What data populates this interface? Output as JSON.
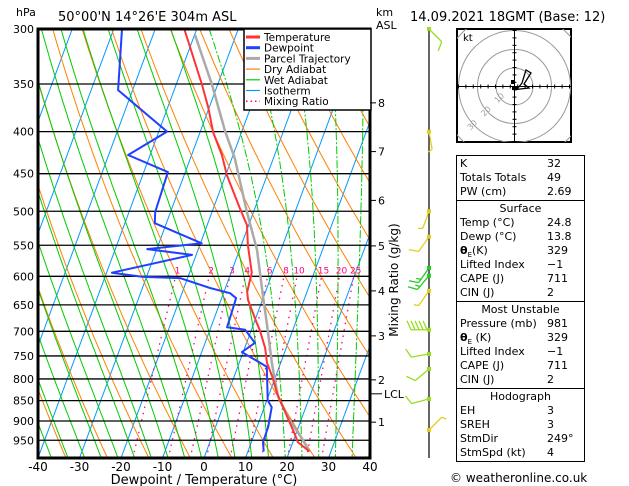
{
  "header": {
    "pressure_unit": "hPa",
    "location": "50°00'N  14°26'E  304m  ASL",
    "km": "km",
    "asl": "ASL",
    "datetime": "14.09.2021  18GMT  (Base: 12)"
  },
  "legend": [
    {
      "label": "Temperature",
      "color": "#ff3333",
      "style": "solid"
    },
    {
      "label": "Dewpoint",
      "color": "#2040ff",
      "style": "solid"
    },
    {
      "label": "Parcel Trajectory",
      "color": "#aaaaaa",
      "style": "solid"
    },
    {
      "label": "Dry Adiabat",
      "color": "#ff8000",
      "style": "solid"
    },
    {
      "label": "Wet Adiabat",
      "color": "#00cc00",
      "style": "solid"
    },
    {
      "label": "Isotherm",
      "color": "#0099ff",
      "style": "solid"
    },
    {
      "label": "Mixing Ratio",
      "color": "#ff0080",
      "style": "dotted"
    }
  ],
  "chart_data": {
    "type": "skew-t",
    "xlabel": "Dewpoint / Temperature (°C)",
    "ylabel": "hPa",
    "y2label": "Mixing Ratio (g/kg)",
    "xlim": [
      -40,
      40
    ],
    "ylim": [
      1000,
      300
    ],
    "x_ticks": [
      "-40",
      "-30",
      "-20",
      "-10",
      "0",
      "10",
      "20",
      "30",
      "40"
    ],
    "x_tick_values": [
      -40,
      -30,
      -20,
      -10,
      0,
      10,
      20,
      30,
      40
    ],
    "pressure_levels": [
      300,
      350,
      400,
      450,
      500,
      550,
      600,
      650,
      700,
      750,
      800,
      850,
      900,
      950
    ],
    "pressure_labels": [
      "300",
      "350",
      "400",
      "450",
      "500",
      "550",
      "600",
      "650",
      "700",
      "750",
      "800",
      "850",
      "900",
      "950"
    ],
    "height_ticks": [
      {
        "label": "8",
        "p": 369
      },
      {
        "label": "7",
        "p": 423
      },
      {
        "label": "6",
        "p": 485
      },
      {
        "label": "5",
        "p": 551
      },
      {
        "label": "4",
        "p": 625
      },
      {
        "label": "3",
        "p": 709
      },
      {
        "label": "2",
        "p": 802
      },
      {
        "label": "LCL",
        "p": 834
      },
      {
        "label": "1",
        "p": 903
      }
    ],
    "mixing_ratios": [
      1,
      2,
      3,
      4,
      6,
      8,
      10,
      15,
      20,
      25
    ],
    "mixing_ratio_labels": [
      "1",
      "2",
      "3",
      "4",
      "6",
      "8",
      "10",
      "15",
      "20",
      "25"
    ],
    "temperature": [
      [
        980,
        24.8
      ],
      [
        955,
        21.2
      ],
      [
        936,
        19.9
      ],
      [
        905,
        17.6
      ],
      [
        866,
        14.5
      ],
      [
        832,
        11.8
      ],
      [
        795,
        9.2
      ],
      [
        765,
        6.7
      ],
      [
        733,
        4.9
      ],
      [
        697,
        2.0
      ],
      [
        684,
        0.7
      ],
      [
        641,
        -3.5
      ],
      [
        627,
        -4.4
      ],
      [
        606,
        -4.8
      ],
      [
        594,
        -5.0
      ],
      [
        550,
        -8.4
      ],
      [
        520,
        -10.4
      ],
      [
        496,
        -13.6
      ],
      [
        452,
        -19.7
      ],
      [
        427,
        -22.7
      ],
      [
        401,
        -26.8
      ],
      [
        374,
        -30.2
      ],
      [
        351,
        -33.7
      ],
      [
        300,
        -43.0
      ]
    ],
    "dewpoint": [
      [
        980,
        13.8
      ],
      [
        955,
        12.8
      ],
      [
        915,
        12.7
      ],
      [
        866,
        11.8
      ],
      [
        849,
        10.2
      ],
      [
        773,
        7.0
      ],
      [
        742,
        -0.3
      ],
      [
        723,
        2.0
      ],
      [
        697,
        -1.5
      ],
      [
        692,
        -6.1
      ],
      [
        638,
        -6.5
      ],
      [
        629,
        -8.4
      ],
      [
        620,
        -13.7
      ],
      [
        603,
        -21.8
      ],
      [
        601,
        -30.8
      ],
      [
        594,
        -38.7
      ],
      [
        565,
        -21.0
      ],
      [
        556,
        -32.3
      ],
      [
        547,
        -19.7
      ],
      [
        517,
        -32.8
      ],
      [
        501,
        -33.7
      ],
      [
        448,
        -34.2
      ],
      [
        427,
        -45.3
      ],
      [
        400,
        -38.0
      ],
      [
        356,
        -53.5
      ],
      [
        300,
        -58.0
      ]
    ],
    "parcel": [
      [
        980,
        24.8
      ],
      [
        949,
        22.2
      ],
      [
        898,
        17.3
      ],
      [
        841,
        12.4
      ],
      [
        802,
        10.1
      ],
      [
        765,
        7.9
      ],
      [
        684,
        3.1
      ],
      [
        636,
        -0.1
      ],
      [
        557,
        -5.8
      ],
      [
        501,
        -11.6
      ],
      [
        431,
        -19.3
      ],
      [
        400,
        -24.0
      ],
      [
        351,
        -31.3
      ],
      [
        305,
        -39.9
      ]
    ],
    "winds": [
      {
        "p": 300,
        "dir": 135,
        "kt": 10,
        "color": "#99dd22"
      },
      {
        "p": 400,
        "dir": 170,
        "kt": 5,
        "color": "#e0d020"
      },
      {
        "p": 500,
        "dir": 200,
        "kt": 5,
        "color": "#e0d020"
      },
      {
        "p": 537,
        "dir": 215,
        "kt": 10,
        "color": "#e0d020"
      },
      {
        "p": 586,
        "dir": 215,
        "kt": 15,
        "color": "#22cc22"
      },
      {
        "p": 599,
        "dir": 220,
        "kt": 15,
        "color": "#22cc22"
      },
      {
        "p": 625,
        "dir": 215,
        "kt": 5,
        "color": "#e0d020"
      },
      {
        "p": 697,
        "dir": 270,
        "kt": 50,
        "color": "#99dd22"
      },
      {
        "p": 746,
        "dir": 260,
        "kt": 10,
        "color": "#99dd22"
      },
      {
        "p": 778,
        "dir": 230,
        "kt": 10,
        "color": "#99dd22"
      },
      {
        "p": 846,
        "dir": 255,
        "kt": 10,
        "color": "#99dd22"
      },
      {
        "p": 923,
        "dir": 45,
        "kt": 5,
        "color": "#e0d020"
      }
    ]
  },
  "hodograph": {
    "unit": "kt",
    "ring_labels": [
      "10",
      "20",
      "30"
    ]
  },
  "indices": {
    "rows": [
      {
        "label": "K",
        "value": "32"
      },
      {
        "label": "Totals Totals",
        "value": "49"
      },
      {
        "label": "PW (cm)",
        "value": "2.69"
      }
    ]
  },
  "surface": {
    "title": "Surface",
    "temp_label": "Temp (°C)",
    "temp": "24.8",
    "dewp_label": "Dewp (°C)",
    "dewp": "13.8",
    "theta_sym": "θ",
    "theta_sub": "E",
    "theta_unit": "(K)",
    "theta": "329",
    "li_label": "Lifted Index",
    "li": "−1",
    "cape_label": "CAPE (J)",
    "cape": "711",
    "cin_label": "CIN (J)",
    "cin": "2"
  },
  "most_unstable": {
    "title": "Most Unstable",
    "pressure_label": "Pressure (mb)",
    "pressure": "981",
    "theta_sym": "θ",
    "theta_sub": "E",
    "theta_unit": " (K)",
    "theta": "329",
    "li_label": "Lifted Index",
    "li": "−1",
    "cape_label": "CAPE (J)",
    "cape": "711",
    "cin_label": "CIN (J)",
    "cin": "2"
  },
  "hodo_stats": {
    "title": "Hodograph",
    "rows": [
      {
        "label": "EH",
        "value": "3"
      },
      {
        "label": "SREH",
        "value": "3"
      },
      {
        "label": "StmDir",
        "value": "249°"
      },
      {
        "label": "StmSpd (kt)",
        "value": "4"
      }
    ]
  },
  "footer": {
    "copyright": "© weatheronline.co.uk"
  }
}
